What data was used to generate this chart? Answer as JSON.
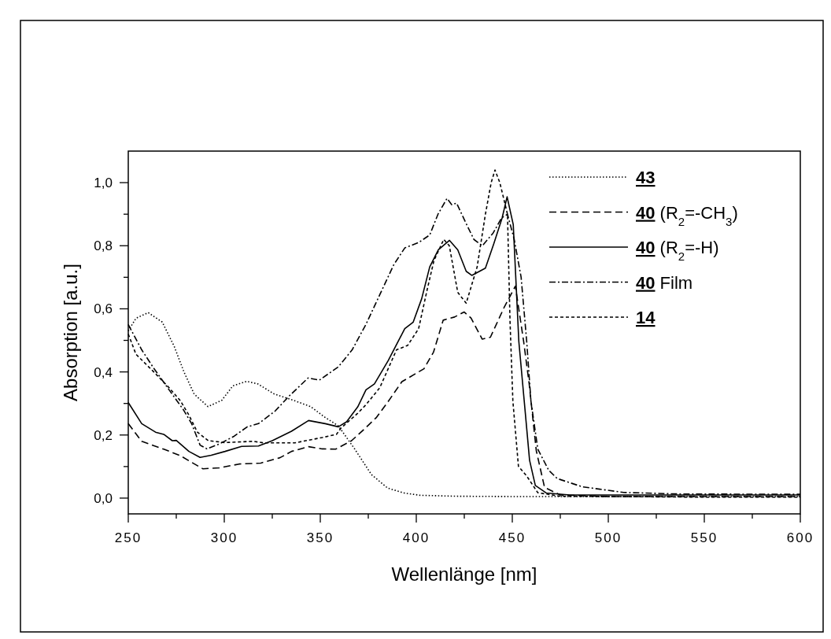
{
  "chart_data": {
    "type": "line",
    "xlabel": "Wellenlänge [nm]",
    "ylabel": "Absorption [a.u.]",
    "xlim": [
      250,
      600
    ],
    "ylim": [
      -0.05,
      1.1
    ],
    "xticks": [
      250,
      {
        "value": 275,
        "label": null
      },
      300,
      {
        "value": 325,
        "label": null
      },
      350,
      {
        "value": 375,
        "label": null
      },
      400,
      {
        "value": 425,
        "label": null
      },
      450,
      {
        "value": 475,
        "label": null
      },
      500,
      {
        "value": 525,
        "label": null
      },
      550,
      {
        "value": 575,
        "label": null
      },
      600
    ],
    "yticks": [
      {
        "value": 0,
        "label": "0,0"
      },
      {
        "value": 0.1,
        "label": null
      },
      {
        "value": 0.2,
        "label": "0,2"
      },
      {
        "value": 0.3,
        "label": null
      },
      {
        "value": 0.4,
        "label": "0,4"
      },
      {
        "value": 0.5,
        "label": null
      },
      {
        "value": 0.6,
        "label": "0,6"
      },
      {
        "value": 0.7,
        "label": null
      },
      {
        "value": 0.8,
        "label": "0,8"
      },
      {
        "value": 0.9,
        "label": null
      },
      {
        "value": 1.0,
        "label": "1,0"
      }
    ],
    "grid": false,
    "legend": "top right",
    "marker": "none",
    "series": [
      {
        "name": "43",
        "color": "#000000",
        "line_style": "dotted",
        "x": [
          250,
          254,
          260.4,
          267.7,
          274,
          279,
          284.3,
          291.5,
          298.7,
          304.5,
          311.7,
          317.5,
          326,
          336,
          345,
          352,
          359.4,
          368,
          376.6,
          385,
          393.7,
          402,
          420,
          450,
          500,
          550,
          600
        ],
        "values": [
          0.53,
          0.57,
          0.588,
          0.558,
          0.48,
          0.4,
          0.33,
          0.29,
          0.31,
          0.356,
          0.37,
          0.362,
          0.33,
          0.31,
          0.29,
          0.258,
          0.229,
          0.155,
          0.075,
          0.032,
          0.016,
          0.009,
          0.006,
          0.005,
          0.005,
          0.005,
          0.005
        ]
      },
      {
        "name": "40 (R$_{2}$=-CH$_{3}$)",
        "color": "#000000",
        "line_style": "dashed",
        "x": [
          250,
          257,
          268.5,
          277,
          284.5,
          288.8,
          297.5,
          307.7,
          319,
          329,
          335,
          343.9,
          351,
          358,
          366.3,
          373.5,
          379.3,
          385,
          392.5,
          404,
          409,
          414,
          419.9,
          424.9,
          428.5,
          434.3,
          438.6,
          445.8,
          451.6,
          455.9,
          458.8,
          462.5,
          466.8,
          475,
          500,
          550,
          600
        ],
        "values": [
          0.236,
          0.18,
          0.155,
          0.135,
          0.108,
          0.093,
          0.096,
          0.108,
          0.111,
          0.128,
          0.148,
          0.163,
          0.156,
          0.155,
          0.182,
          0.222,
          0.256,
          0.303,
          0.369,
          0.41,
          0.463,
          0.564,
          0.574,
          0.59,
          0.571,
          0.504,
          0.51,
          0.605,
          0.672,
          0.497,
          0.362,
          0.15,
          0.034,
          0.01,
          0.005,
          0.005,
          0.005
        ]
      },
      {
        "name": "40 (R$_{2}$=-H)",
        "color": "#000000",
        "line_style": "solid",
        "x": [
          250,
          257,
          264.2,
          268.5,
          272.9,
          275,
          281.6,
          287.4,
          293.2,
          300.4,
          309,
          317.8,
          325,
          335,
          343.9,
          352.6,
          359.4,
          363.7,
          369.5,
          373.8,
          378.2,
          385.4,
          394,
          398.4,
          402.8,
          407,
          411.5,
          417.3,
          421.6,
          426,
          428.9,
          436,
          440.4,
          444.7,
          447.3,
          450.5,
          453.4,
          456.3,
          459,
          462,
          467.8,
          480,
          500,
          550,
          600
        ],
        "values": [
          0.303,
          0.236,
          0.209,
          0.202,
          0.182,
          0.183,
          0.148,
          0.129,
          0.136,
          0.148,
          0.164,
          0.165,
          0.182,
          0.212,
          0.246,
          0.236,
          0.226,
          0.242,
          0.289,
          0.343,
          0.362,
          0.436,
          0.537,
          0.558,
          0.632,
          0.733,
          0.787,
          0.817,
          0.787,
          0.719,
          0.706,
          0.729,
          0.807,
          0.888,
          0.955,
          0.867,
          0.497,
          0.302,
          0.12,
          0.04,
          0.016,
          0.01,
          0.01,
          0.01,
          0.01
        ]
      },
      {
        "name": "40 Film",
        "color": "#000000",
        "line_style": "dashdot",
        "x": [
          250,
          257,
          262.8,
          271.4,
          278.7,
          283,
          287.4,
          291,
          297.5,
          304.8,
          312,
          317.8,
          326.5,
          333.7,
          343.7,
          349.5,
          359.4,
          366.6,
          373.8,
          381,
          388.2,
          394,
          401.2,
          407,
          411.3,
          416,
          418.5,
          421,
          426,
          430,
          434.4,
          440,
          444.4,
          447.5,
          451,
          454.6,
          457.5,
          459.7,
          463.3,
          469,
          473.4,
          486.4,
          508,
          536.9,
          600
        ],
        "values": [
          0.55,
          0.47,
          0.416,
          0.342,
          0.28,
          0.236,
          0.168,
          0.156,
          0.172,
          0.195,
          0.226,
          0.236,
          0.276,
          0.323,
          0.381,
          0.374,
          0.416,
          0.47,
          0.551,
          0.645,
          0.739,
          0.793,
          0.81,
          0.834,
          0.9,
          0.95,
          0.93,
          0.935,
          0.87,
          0.82,
          0.8,
          0.84,
          0.888,
          0.9,
          0.82,
          0.7,
          0.497,
          0.308,
          0.155,
          0.088,
          0.062,
          0.036,
          0.018,
          0.013,
          0.012
        ]
      },
      {
        "name": "14",
        "color": "#000000",
        "line_style": "short dashed",
        "x": [
          250,
          254,
          262.8,
          271.4,
          277.2,
          281.6,
          286,
          291.7,
          300.4,
          315,
          320.7,
          336.7,
          351,
          358.4,
          360.8,
          369.5,
          373.8,
          381,
          389.7,
          395.5,
          401.2,
          405.6,
          409.2,
          414.3,
          417.2,
          421.6,
          426,
          431.7,
          436,
          439,
          441,
          443.5,
          447.5,
          448.8,
          450.3,
          453.2,
          457.5,
          463.3,
          475,
          500,
          550,
          600
        ],
        "values": [
          0.52,
          0.456,
          0.403,
          0.349,
          0.308,
          0.263,
          0.209,
          0.182,
          0.176,
          0.18,
          0.175,
          0.175,
          0.192,
          0.202,
          0.222,
          0.269,
          0.296,
          0.35,
          0.47,
          0.484,
          0.537,
          0.659,
          0.753,
          0.82,
          0.8,
          0.652,
          0.618,
          0.733,
          0.9,
          1.0,
          1.04,
          1.0,
          0.9,
          0.564,
          0.308,
          0.101,
          0.07,
          0.017,
          0.006,
          0.005,
          0.003,
          0.003
        ]
      }
    ]
  }
}
